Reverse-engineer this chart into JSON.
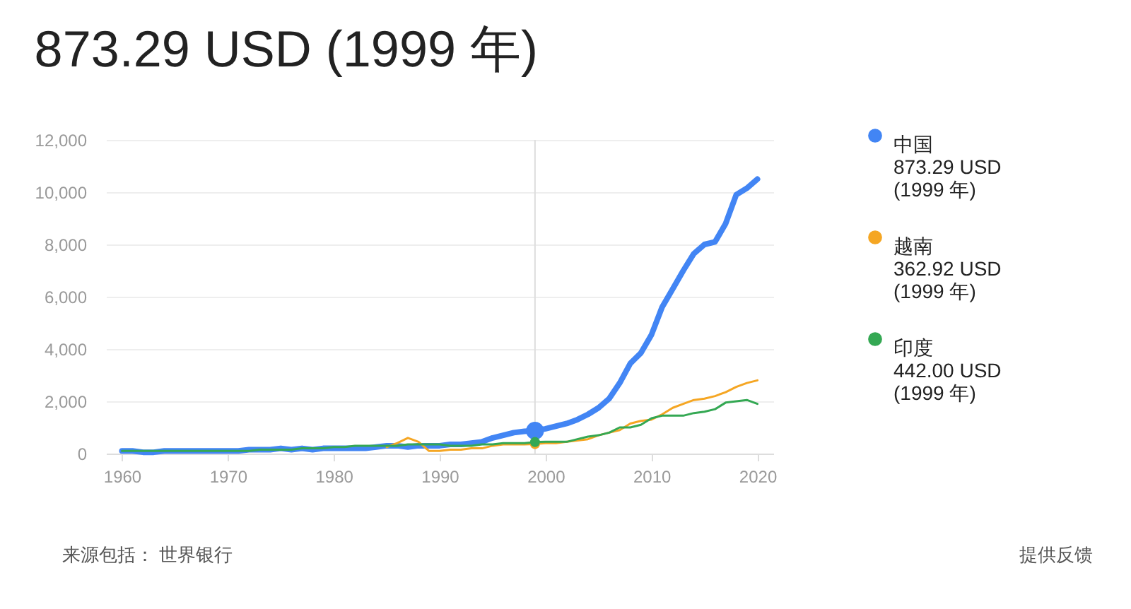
{
  "chart_data": {
    "type": "line",
    "title": "873.29 USD (1999 年)",
    "x": [
      1960,
      1961,
      1962,
      1963,
      1964,
      1965,
      1966,
      1967,
      1968,
      1969,
      1970,
      1971,
      1972,
      1973,
      1974,
      1975,
      1976,
      1977,
      1978,
      1979,
      1980,
      1981,
      1982,
      1983,
      1984,
      1985,
      1986,
      1987,
      1988,
      1989,
      1990,
      1991,
      1992,
      1993,
      1994,
      1995,
      1996,
      1997,
      1998,
      1999,
      2000,
      2001,
      2002,
      2003,
      2004,
      2005,
      2006,
      2007,
      2008,
      2009,
      2010,
      2011,
      2012,
      2013,
      2014,
      2015,
      2016,
      2017,
      2018,
      2019,
      2020
    ],
    "series": [
      {
        "name": "中国",
        "color": "#4285f4",
        "values": [
          100,
          100,
          50,
          50,
          100,
          100,
          100,
          100,
          100,
          100,
          100,
          100,
          150,
          150,
          150,
          200,
          150,
          200,
          150,
          200,
          200,
          200,
          200,
          200,
          250,
          300,
          300,
          250,
          300,
          300,
          300,
          350,
          350,
          400,
          450,
          600,
          700,
          800,
          850,
          873.29,
          950,
          1050,
          1150,
          1300,
          1500,
          1750,
          2100,
          2700,
          3450,
          3850,
          4550,
          5600,
          6300,
          7000,
          7650,
          8000,
          8100,
          8800,
          9900,
          10150,
          10500
        ]
      },
      {
        "name": "越南",
        "color": "#f5a623",
        "values": [
          null,
          null,
          null,
          null,
          null,
          null,
          null,
          null,
          null,
          null,
          null,
          null,
          null,
          null,
          null,
          null,
          null,
          null,
          null,
          null,
          null,
          null,
          null,
          null,
          null,
          250,
          400,
          600,
          450,
          100,
          100,
          150,
          150,
          200,
          200,
          300,
          350,
          350,
          350,
          362.92,
          400,
          400,
          450,
          500,
          550,
          700,
          800,
          900,
          1150,
          1250,
          1300,
          1500,
          1750,
          1900,
          2050,
          2100,
          2200,
          2350,
          2550,
          2700,
          2800
        ]
      },
      {
        "name": "印度",
        "color": "#34a853",
        "values": [
          100,
          100,
          100,
          100,
          100,
          100,
          100,
          100,
          100,
          100,
          100,
          100,
          100,
          150,
          150,
          150,
          150,
          200,
          200,
          200,
          250,
          250,
          300,
          300,
          300,
          300,
          300,
          350,
          350,
          350,
          350,
          300,
          300,
          300,
          350,
          350,
          400,
          400,
          400,
          442,
          450,
          450,
          450,
          550,
          650,
          700,
          800,
          1000,
          1000,
          1100,
          1350,
          1450,
          1450,
          1450,
          1550,
          1600,
          1700,
          1950,
          2000,
          2050,
          1900
        ]
      }
    ],
    "xlim": [
      1958.5,
      2021.5
    ],
    "xticks": [
      1960,
      1970,
      1980,
      1990,
      2000,
      2010,
      2020
    ],
    "ylim": [
      0,
      12000
    ],
    "yticks": [
      0,
      {
        "value": 2000,
        "label": "2,000"
      },
      {
        "value": 4000,
        "label": "4,000"
      },
      {
        "value": 6000,
        "label": "6,000"
      },
      {
        "value": 8000,
        "label": "8,000"
      },
      {
        "value": 10000,
        "label": "10,000"
      },
      {
        "value": 12000,
        "label": "12,000"
      }
    ],
    "grid": "y",
    "legend": "right",
    "ref_lines": [
      {
        "axis": "x",
        "value": 1999,
        "color": "#dddddd"
      }
    ],
    "annotations": [
      "873.29 USD (1999 年)",
      "362.92 USD (1999 年)",
      "442.00 USD (1999 年)",
      "来源包括： 世界银行",
      "提供反馈"
    ]
  }
}
